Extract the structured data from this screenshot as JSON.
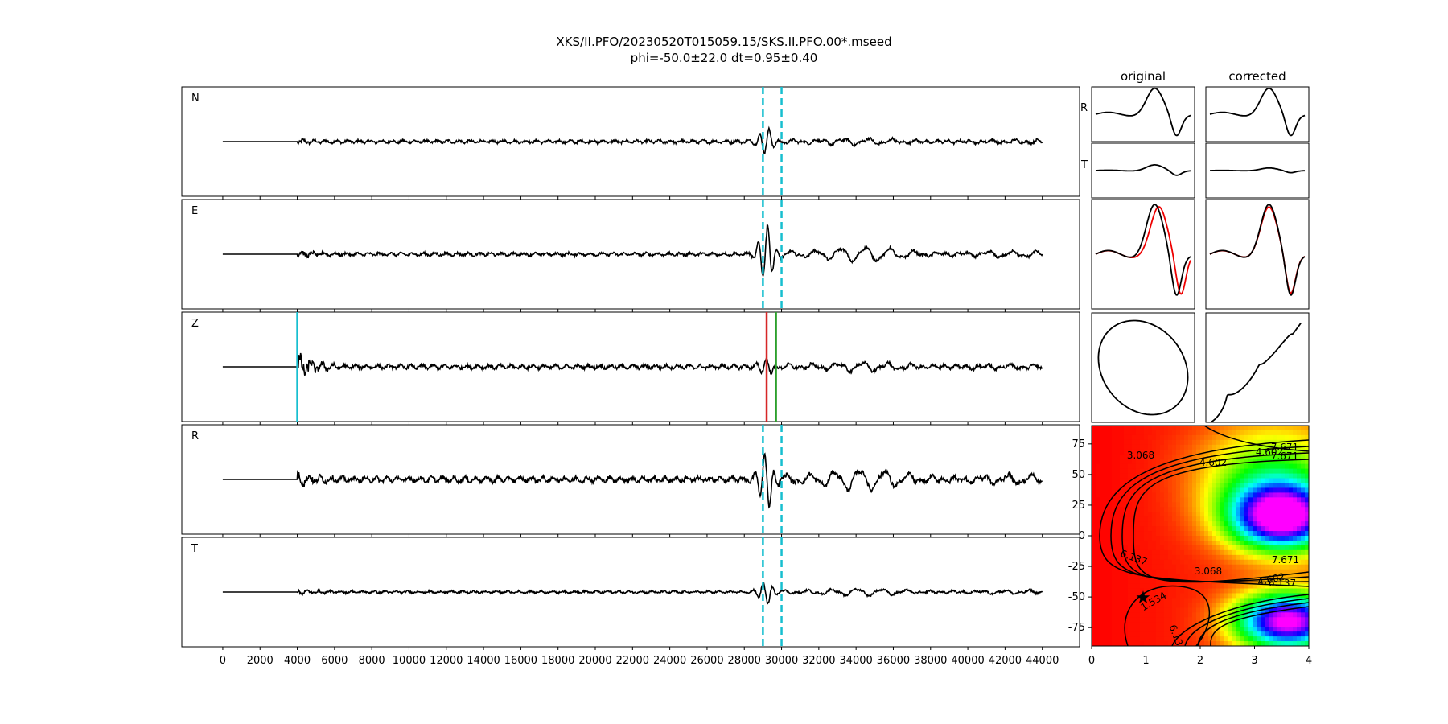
{
  "title_line1": "XKS/II.PFO/20230520T015059.15/SKS.II.PFO.00*.mseed",
  "title_line2": "phi=-50.0±22.0 dt=0.95±0.40",
  "chart_data": {
    "type": "line",
    "traces": {
      "xlim": [
        -2200,
        46000
      ],
      "xticks": [
        0,
        2000,
        4000,
        6000,
        8000,
        10000,
        12000,
        14000,
        16000,
        18000,
        20000,
        22000,
        24000,
        26000,
        28000,
        30000,
        32000,
        34000,
        36000,
        38000,
        40000,
        42000,
        44000
      ],
      "xticklabels": [
        "0",
        "2000",
        "4000",
        "6000",
        "8000",
        "10000",
        "12000",
        "14000",
        "16000",
        "18000",
        "20000",
        "22000",
        "24000",
        "26000",
        "28000",
        "30000",
        "32000",
        "34000",
        "36000",
        "38000",
        "40000",
        "42000",
        "44000"
      ],
      "x_end": 44000,
      "panels": [
        {
          "label": "N",
          "markers": "window",
          "p_amp": 0.02,
          "noise": 0.04,
          "s_amp": 0.22,
          "coda": 0.06,
          "s_coda": 0.1
        },
        {
          "label": "E",
          "markers": "window",
          "p_amp": 0.05,
          "noise": 0.04,
          "s_amp": 0.5,
          "coda": 0.06,
          "s_coda": 0.25
        },
        {
          "label": "Z",
          "markers": "picks",
          "p_amp": 0.25,
          "noise": 0.05,
          "s_amp": 0.12,
          "coda": 0.1,
          "s_coda": 0.15
        },
        {
          "label": "R",
          "markers": "window",
          "p_amp": 0.1,
          "noise": 0.07,
          "s_amp": 0.5,
          "coda": 0.07,
          "s_coda": 0.35
        },
        {
          "label": "T",
          "markers": "window",
          "p_amp": 0.03,
          "noise": 0.03,
          "s_amp": 0.2,
          "coda": 0.04,
          "s_coda": 0.12
        }
      ],
      "window_start": 29000,
      "window_end": 30000,
      "pick_cyan": 4000,
      "pick_red": 29200,
      "pick_green": 29700,
      "colors": {
        "trace": "#000000",
        "window": "#17becf",
        "pick_p": "#17becf",
        "pick_s1": "#d62728",
        "pick_s2": "#2ca02c"
      }
    },
    "particle_motion": {
      "columns": [
        "original",
        "corrected"
      ],
      "row_labels": [
        "R",
        "T"
      ]
    },
    "grid_search": {
      "type": "heatmap",
      "xlim": [
        0,
        4
      ],
      "ylim": [
        -90,
        90
      ],
      "xticks": [
        0,
        1,
        2,
        3,
        4
      ],
      "yticks": [
        -75,
        -50,
        -25,
        0,
        25,
        50,
        75
      ],
      "contour_labels": [
        "1.534",
        "3.068",
        "4.602",
        "6.137",
        "7.671",
        "3.068",
        "4.602",
        "6.137",
        "7.671",
        "7.671",
        "4.602",
        "6.13"
      ],
      "best": {
        "dt": 0.95,
        "phi": -50.0
      }
    }
  }
}
